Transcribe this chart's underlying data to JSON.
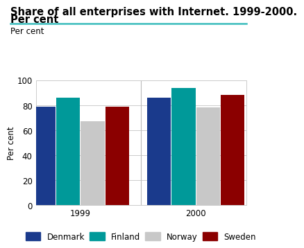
{
  "title_line1": "Share of all enterprises with Internet. 1999-2000.",
  "title_line2": "Per cent",
  "ylabel": "Per cent",
  "groups": [
    "1999",
    "2000"
  ],
  "countries": [
    "Denmark",
    "Finland",
    "Norway",
    "Sweden"
  ],
  "values": {
    "1999": [
      79,
      86,
      67,
      79
    ],
    "2000": [
      86,
      94,
      78,
      88
    ]
  },
  "colors": {
    "Denmark": "#1a3a8c",
    "Finland": "#009999",
    "Norway": "#c8c8c8",
    "Sweden": "#8b0000"
  },
  "ylim": [
    0,
    100
  ],
  "yticks": [
    0,
    20,
    40,
    60,
    80,
    100
  ],
  "background_color": "#ffffff",
  "title_fontsize": 10.5,
  "axis_label_fontsize": 8.5,
  "tick_fontsize": 8.5,
  "legend_fontsize": 8.5,
  "bar_width": 0.17,
  "title_color": "#000000",
  "teal_line_color": "#3abcbc",
  "grid_color": "#cccccc",
  "divider_color": "#bbbbbb"
}
